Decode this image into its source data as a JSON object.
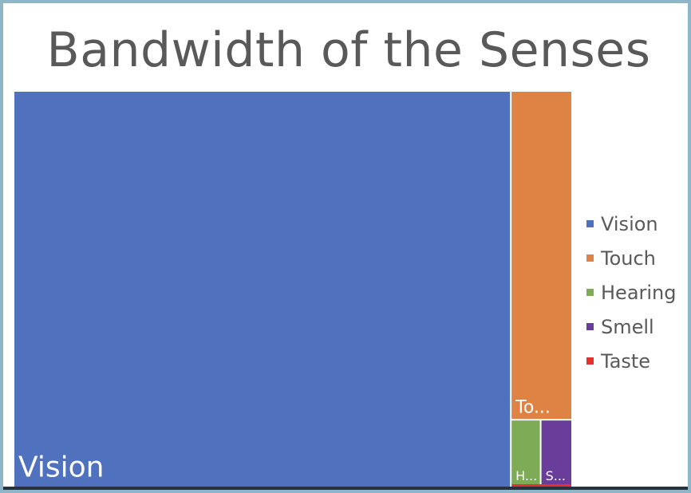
{
  "chart_data": {
    "type": "treemap",
    "title": "Bandwidth of the Senses",
    "series": [
      {
        "name": "Vision",
        "value": 10000000,
        "label": "Vision",
        "color": "#4F71BE"
      },
      {
        "name": "Touch",
        "value": 1000000,
        "label": "To...",
        "color": "#DE8344"
      },
      {
        "name": "Hearing",
        "value": 100000,
        "label": "H...",
        "color": "#7EAB55"
      },
      {
        "name": "Smell",
        "value": 100000,
        "label": "S...",
        "color": "#6A3D9A"
      },
      {
        "name": "Taste",
        "value": 1000,
        "label": "",
        "color": "#E3322C"
      }
    ],
    "legend_position": "right"
  },
  "legend": [
    {
      "label": "Vision",
      "color": "#4F71BE"
    },
    {
      "label": "Touch",
      "color": "#DE8344"
    },
    {
      "label": "Hearing",
      "color": "#7EAB55"
    },
    {
      "label": "Smell",
      "color": "#6A3D9A"
    },
    {
      "label": "Taste",
      "color": "#E3322C"
    }
  ]
}
